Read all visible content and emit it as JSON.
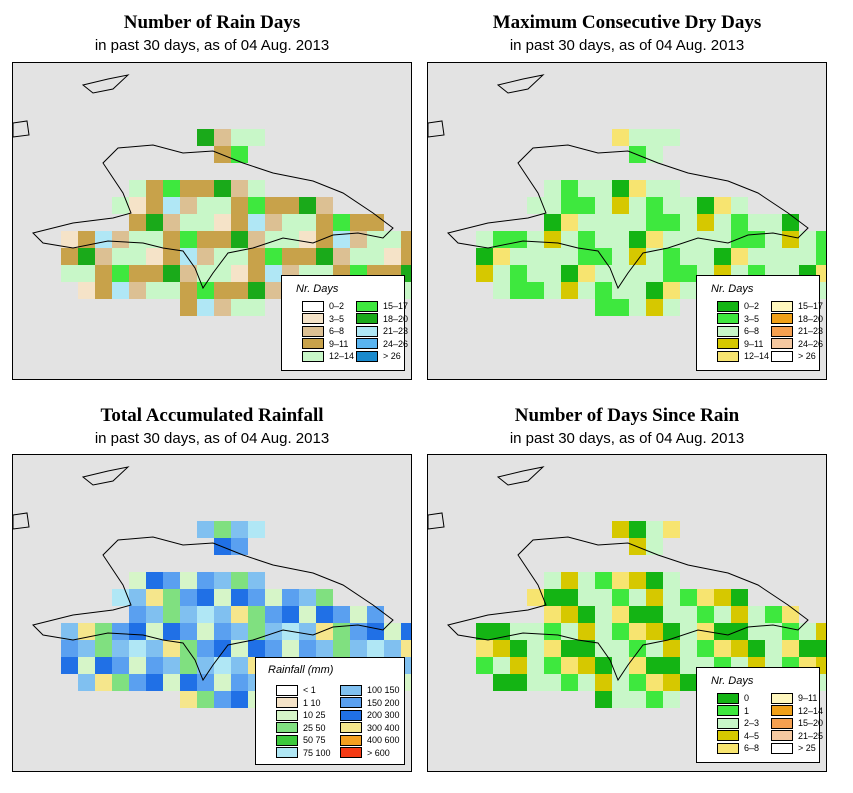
{
  "colors": {
    "sea": "#e3e3e3",
    "outline": "#000000"
  },
  "panels": [
    {
      "id": "rain_days",
      "title": "Number of Rain Days",
      "subtitle": "in past 30 days, as of  04 Aug. 2013",
      "legend_title": "Nr. Days",
      "legend": [
        {
          "label": "0–2",
          "color": "#ffffff"
        },
        {
          "label": "3–5",
          "color": "#f5e3c8"
        },
        {
          "label": "6–8",
          "color": "#dcc093"
        },
        {
          "label": "9–11",
          "color": "#c8a24a"
        },
        {
          "label": "12–14",
          "color": "#c8f7c8"
        },
        {
          "label": "15–17",
          "color": "#3ee83e"
        },
        {
          "label": "18–20",
          "color": "#1aaa1a"
        },
        {
          "label": "21–23",
          "color": "#b0e7f5"
        },
        {
          "label": "24–26",
          "color": "#59b4f0"
        },
        {
          "label": "> 26",
          "color": "#1a8acd"
        }
      ]
    },
    {
      "id": "dry_days",
      "title": "Maximum Consecutive Dry Days",
      "subtitle": "in past 30 days, as of  04 Aug. 2013",
      "legend_title": "Nr. Days",
      "legend": [
        {
          "label": "0–2",
          "color": "#14b414"
        },
        {
          "label": "3–5",
          "color": "#3ee83e"
        },
        {
          "label": "6–8",
          "color": "#c8f7c8"
        },
        {
          "label": "9–11",
          "color": "#d6c800"
        },
        {
          "label": "12–14",
          "color": "#f7e470"
        },
        {
          "label": "15–17",
          "color": "#fff7be"
        },
        {
          "label": "18–20",
          "color": "#f0a018"
        },
        {
          "label": "21–23",
          "color": "#f5a050"
        },
        {
          "label": "24–26",
          "color": "#f5c8a0"
        },
        {
          "label": "> 26",
          "color": "#ffffff"
        }
      ]
    },
    {
      "id": "rainfall",
      "title": "Total Accumulated Rainfall",
      "subtitle": "in past 30 days, as of  04 Aug. 2013",
      "legend_title": "Rainfall (mm)",
      "legend": [
        {
          "label": "< 1",
          "color": "#ffffff"
        },
        {
          "label": "1  10",
          "color": "#f5e3c8"
        },
        {
          "label": "10  25",
          "color": "#d6f5c8"
        },
        {
          "label": "25  50",
          "color": "#80e080"
        },
        {
          "label": "50  75",
          "color": "#3cc83c"
        },
        {
          "label": "75  100",
          "color": "#b0e7f5"
        },
        {
          "label": "100  150",
          "color": "#80c0f0"
        },
        {
          "label": "150  200",
          "color": "#5aa0f0"
        },
        {
          "label": "200  300",
          "color": "#2070e6"
        },
        {
          "label": "300  400",
          "color": "#f5e68c"
        },
        {
          "label": "400  600",
          "color": "#f5a020"
        },
        {
          "label": "> 600",
          "color": "#f53a14"
        }
      ]
    },
    {
      "id": "since_rain",
      "title": "Number of Days Since Rain",
      "subtitle": "in past 30 days, as of  04 Aug. 2013",
      "legend_title": "Nr. Days",
      "legend": [
        {
          "label": "0",
          "color": "#14b414"
        },
        {
          "label": "1",
          "color": "#3ee83e"
        },
        {
          "label": "2–3",
          "color": "#c8f7c8"
        },
        {
          "label": "4–5",
          "color": "#d6c800"
        },
        {
          "label": "6–8",
          "color": "#f7e470"
        },
        {
          "label": "9–11",
          "color": "#fff7be"
        },
        {
          "label": "12–14",
          "color": "#f0a018"
        },
        {
          "label": "15–20",
          "color": "#f5a050"
        },
        {
          "label": "21–25",
          "color": "#f5c8a0"
        },
        {
          "label": "> 25",
          "color": "#ffffff"
        }
      ]
    }
  ]
}
